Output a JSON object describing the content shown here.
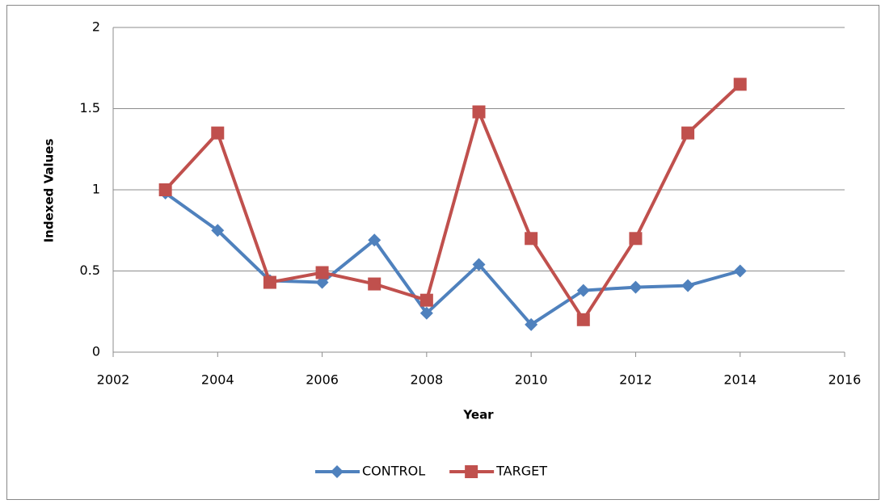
{
  "chart_data": {
    "type": "line",
    "x_label": "Year",
    "y_label": "Indexed Values",
    "x": [
      2003,
      2004,
      2005,
      2006,
      2007,
      2008,
      2009,
      2010,
      2011,
      2012,
      2013,
      2014
    ],
    "series": [
      {
        "name": "CONTROL",
        "color": "#4f81bd",
        "marker": "diamond",
        "values": [
          0.98,
          0.75,
          0.44,
          0.43,
          0.69,
          0.24,
          0.54,
          0.17,
          0.38,
          0.4,
          0.41,
          0.5
        ]
      },
      {
        "name": "TARGET",
        "color": "#c0504d",
        "marker": "square",
        "values": [
          1.0,
          1.35,
          0.43,
          0.49,
          0.42,
          0.32,
          1.48,
          0.7,
          0.2,
          0.7,
          1.35,
          1.65
        ]
      }
    ],
    "xlim": [
      2002,
      2016
    ],
    "xticks": [
      2002,
      2004,
      2006,
      2008,
      2010,
      2012,
      2014,
      2016
    ],
    "ylim": [
      0,
      2
    ],
    "yticks": [
      0,
      0.5,
      1,
      1.5,
      2
    ],
    "grid": true,
    "legend": "bottom"
  }
}
